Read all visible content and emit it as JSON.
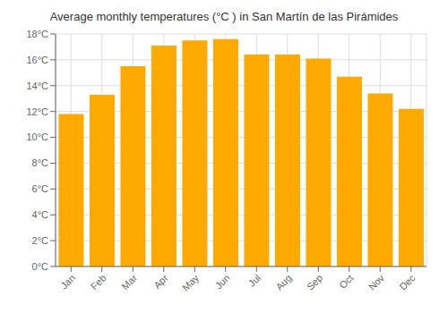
{
  "chart_data": {
    "type": "bar",
    "title": "Average monthly temperatures (°C ) in San Martín de las Pirámides",
    "categories": [
      "Jan",
      "Feb",
      "Mar",
      "Apr",
      "May",
      "Jun",
      "Jul",
      "Aug",
      "Sep",
      "Oct",
      "Nov",
      "Dec"
    ],
    "values": [
      11.8,
      13.3,
      15.5,
      17.1,
      17.5,
      17.6,
      16.4,
      16.4,
      16.1,
      14.7,
      13.4,
      12.2
    ],
    "color": "#FFAA00",
    "ylim": [
      0,
      18
    ],
    "yticks": [
      {
        "value": 0,
        "label": "0°C"
      },
      {
        "value": 2,
        "label": "2°C"
      },
      {
        "value": 4,
        "label": "4°C"
      },
      {
        "value": 6,
        "label": "6°C"
      },
      {
        "value": 8,
        "label": "8°C"
      },
      {
        "value": 10,
        "label": "10°C"
      },
      {
        "value": 12,
        "label": "12°C"
      },
      {
        "value": 14,
        "label": "14°C"
      },
      {
        "value": 16,
        "label": "16°C"
      },
      {
        "value": 18,
        "label": "18°C"
      }
    ],
    "grid": true
  }
}
